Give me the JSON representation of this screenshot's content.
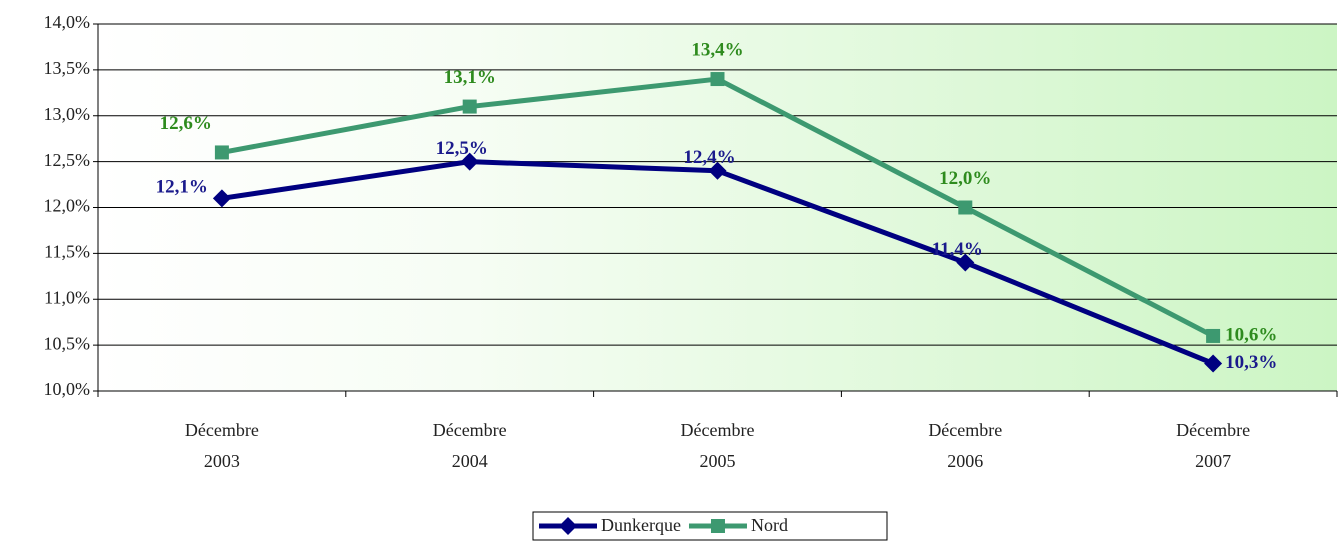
{
  "chart_data": {
    "type": "line",
    "categories": [
      "Décembre 2003",
      "Décembre 2004",
      "Décembre 2005",
      "Décembre 2006",
      "Décembre 2007"
    ],
    "series": [
      {
        "name": "Dunkerque",
        "color": "#000080",
        "label_color": "#1a1a8c",
        "marker": "diamond",
        "values": [
          12.1,
          12.5,
          12.4,
          11.4,
          10.3
        ],
        "value_labels": [
          "12,1%",
          "12,5%",
          "12,4%",
          "11,4%",
          "10,3%"
        ]
      },
      {
        "name": "Nord",
        "color": "#3d9970",
        "label_color": "#2e8b1e",
        "marker": "square",
        "values": [
          12.6,
          13.1,
          13.4,
          12.0,
          10.6
        ],
        "value_labels": [
          "12,6%",
          "13,1%",
          "13,4%",
          "12,0%",
          "10,6%"
        ]
      }
    ],
    "ylim": [
      10,
      14
    ],
    "yticks": [
      {
        "value": 10,
        "label": "10,0%"
      },
      {
        "value": 10.5,
        "label": "10,5%"
      },
      {
        "value": 11,
        "label": "11,0%"
      },
      {
        "value": 11.5,
        "label": "11,5%"
      },
      {
        "value": 12,
        "label": "12,0%"
      },
      {
        "value": 12.5,
        "label": "12,5%"
      },
      {
        "value": 13,
        "label": "13,0%"
      },
      {
        "value": 13.5,
        "label": "13,5%"
      },
      {
        "value": 14,
        "label": "14,0%"
      }
    ],
    "grid": true,
    "legend": "bottom"
  }
}
